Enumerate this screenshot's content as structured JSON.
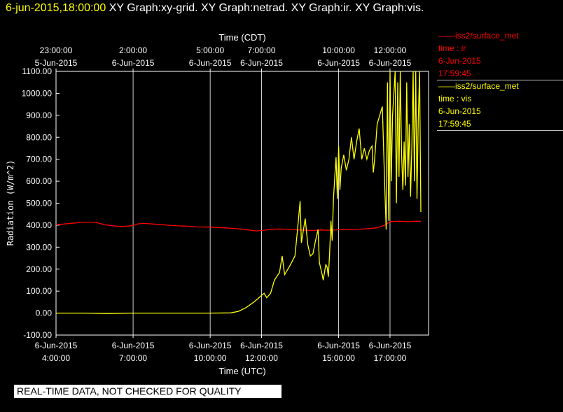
{
  "header": {
    "timestamp": "6-jun-2015,18:00:00",
    "graphs": "XY Graph:xy-grid.  XY Graph:netrad.  XY Graph:ir.  XY Graph:vis."
  },
  "legend": {
    "ir": {
      "station": "iss2/surface_met",
      "variable": "time : ir",
      "date": "6-Jun-2015",
      "time": "17:59:45",
      "color": "#ff0000"
    },
    "vis": {
      "station": "iss2/surface_met",
      "variable": "time : vis",
      "date": "6-Jun-2015",
      "time": "17:59:45",
      "color": "#ffff00"
    }
  },
  "notice": "REAL-TIME DATA, NOT CHECKED FOR QUALITY",
  "chart_data": {
    "type": "line",
    "title": "",
    "xlabel_top": "Time (CDT)",
    "xlabel": "Time (UTC)",
    "ylabel": "Radiation (W/m^2)",
    "x_unit": "hours UTC, 6-Jun-2015",
    "xlim": [
      4.0,
      18.5
    ],
    "ylim": [
      -100,
      1100
    ],
    "y_ticks": [
      "1100.00",
      "1000.00",
      "900.00",
      "800.00",
      "700.00",
      "600.00",
      "500.00",
      "400.00",
      "300.00",
      "200.00",
      "100.00",
      "0.00",
      "-100.00"
    ],
    "y_tick_values": [
      1100,
      1000,
      900,
      800,
      700,
      600,
      500,
      400,
      300,
      200,
      100,
      0,
      -100
    ],
    "grid_x": [
      4.0,
      7.0,
      10.0,
      12.0,
      15.0,
      17.0
    ],
    "top_ticks": [
      {
        "x": 4.0,
        "time": "23:00:00",
        "date": "5-Jun-2015"
      },
      {
        "x": 7.0,
        "time": "2:00:00",
        "date": "6-Jun-2015"
      },
      {
        "x": 10.0,
        "time": "5:00:00",
        "date": "6-Jun-2015"
      },
      {
        "x": 12.0,
        "time": "7:00:00",
        "date": "6-Jun-2015"
      },
      {
        "x": 15.0,
        "time": "10:00:00",
        "date": "6-Jun-2015"
      },
      {
        "x": 17.0,
        "time": "12:00:00",
        "date": "6-Jun-2015"
      }
    ],
    "bottom_ticks": [
      {
        "x": 4.0,
        "date": "6-Jun-2015",
        "time": "4:00:00"
      },
      {
        "x": 7.0,
        "date": "6-Jun-2015",
        "time": "7:00:00"
      },
      {
        "x": 10.0,
        "date": "6-Jun-2015",
        "time": "10:00:00"
      },
      {
        "x": 12.0,
        "date": "6-Jun-2015",
        "time": "12:00:00"
      },
      {
        "x": 15.0,
        "date": "6-Jun-2015",
        "time": "15:00:00"
      },
      {
        "x": 17.0,
        "date": "6-Jun-2015",
        "time": "17:00:00"
      }
    ],
    "series": [
      {
        "name": "ir",
        "color": "#ff0000",
        "points": [
          [
            4.0,
            402
          ],
          [
            4.3,
            405
          ],
          [
            4.7,
            410
          ],
          [
            5.0,
            412
          ],
          [
            5.3,
            414
          ],
          [
            5.6,
            411
          ],
          [
            5.9,
            402
          ],
          [
            6.3,
            396
          ],
          [
            6.6,
            394
          ],
          [
            7.0,
            398
          ],
          [
            7.2,
            406
          ],
          [
            7.4,
            408
          ],
          [
            7.8,
            405
          ],
          [
            8.2,
            402
          ],
          [
            8.5,
            398
          ],
          [
            9.0,
            396
          ],
          [
            9.5,
            392
          ],
          [
            10.0,
            391
          ],
          [
            10.5,
            388
          ],
          [
            11.0,
            385
          ],
          [
            11.5,
            378
          ],
          [
            11.8,
            374
          ],
          [
            12.0,
            376
          ],
          [
            12.3,
            380
          ],
          [
            12.6,
            383
          ],
          [
            13.0,
            381
          ],
          [
            13.5,
            378
          ],
          [
            14.0,
            376
          ],
          [
            14.3,
            378
          ],
          [
            14.6,
            377
          ],
          [
            15.0,
            379
          ],
          [
            15.5,
            380
          ],
          [
            16.0,
            383
          ],
          [
            16.5,
            388
          ],
          [
            16.8,
            400
          ],
          [
            17.0,
            416
          ],
          [
            17.3,
            418
          ],
          [
            17.7,
            416
          ],
          [
            18.0,
            418
          ],
          [
            18.2,
            418
          ]
        ]
      },
      {
        "name": "vis",
        "color": "#ffff00",
        "points": [
          [
            4.0,
            0
          ],
          [
            5.0,
            0
          ],
          [
            6.0,
            -2
          ],
          [
            7.0,
            0
          ],
          [
            8.0,
            0
          ],
          [
            9.0,
            0
          ],
          [
            10.0,
            0
          ],
          [
            10.8,
            1
          ],
          [
            11.1,
            8
          ],
          [
            11.4,
            25
          ],
          [
            11.7,
            50
          ],
          [
            11.9,
            70
          ],
          [
            12.0,
            80
          ],
          [
            12.1,
            90
          ],
          [
            12.2,
            70
          ],
          [
            12.35,
            90
          ],
          [
            12.5,
            150
          ],
          [
            12.7,
            185
          ],
          [
            12.8,
            260
          ],
          [
            12.9,
            175
          ],
          [
            13.1,
            215
          ],
          [
            13.3,
            260
          ],
          [
            13.4,
            380
          ],
          [
            13.5,
            510
          ],
          [
            13.55,
            320
          ],
          [
            13.7,
            430
          ],
          [
            13.8,
            310
          ],
          [
            13.9,
            260
          ],
          [
            14.0,
            270
          ],
          [
            14.1,
            330
          ],
          [
            14.2,
            380
          ],
          [
            14.25,
            230
          ],
          [
            14.35,
            180
          ],
          [
            14.4,
            150
          ],
          [
            14.5,
            220
          ],
          [
            14.55,
            210
          ],
          [
            14.6,
            165
          ],
          [
            14.65,
            270
          ],
          [
            14.7,
            420
          ],
          [
            14.75,
            330
          ],
          [
            14.8,
            520
          ],
          [
            14.85,
            620
          ],
          [
            14.9,
            710
          ],
          [
            14.95,
            520
          ],
          [
            15.0,
            760
          ],
          [
            15.05,
            560
          ],
          [
            15.1,
            660
          ],
          [
            15.2,
            720
          ],
          [
            15.3,
            650
          ],
          [
            15.4,
            700
          ],
          [
            15.5,
            800
          ],
          [
            15.6,
            700
          ],
          [
            15.7,
            780
          ],
          [
            15.8,
            840
          ],
          [
            15.9,
            700
          ],
          [
            16.0,
            750
          ],
          [
            16.1,
            700
          ],
          [
            16.2,
            740
          ],
          [
            16.3,
            760
          ],
          [
            16.35,
            640
          ],
          [
            16.4,
            700
          ],
          [
            16.5,
            860
          ],
          [
            16.6,
            900
          ],
          [
            16.7,
            940
          ],
          [
            16.8,
            560
          ],
          [
            16.85,
            380
          ],
          [
            16.9,
            1050
          ],
          [
            16.95,
            420
          ],
          [
            17.0,
            1100
          ],
          [
            17.05,
            600
          ],
          [
            17.1,
            900
          ],
          [
            17.2,
            1100
          ],
          [
            17.25,
            500
          ],
          [
            17.3,
            1050
          ],
          [
            17.35,
            620
          ],
          [
            17.4,
            1100
          ],
          [
            17.45,
            720
          ],
          [
            17.5,
            560
          ],
          [
            17.55,
            780
          ],
          [
            17.6,
            580
          ],
          [
            17.65,
            1050
          ],
          [
            17.7,
            620
          ],
          [
            17.75,
            860
          ],
          [
            17.8,
            530
          ],
          [
            17.85,
            760
          ],
          [
            17.9,
            1100
          ],
          [
            17.95,
            600
          ],
          [
            18.0,
            1100
          ],
          [
            18.05,
            520
          ],
          [
            18.1,
            880
          ],
          [
            18.15,
            1100
          ],
          [
            18.2,
            460
          ]
        ]
      }
    ]
  }
}
